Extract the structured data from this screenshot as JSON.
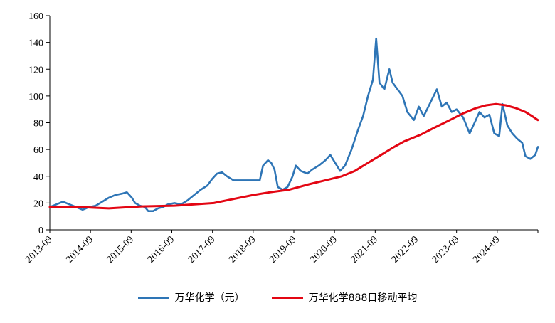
{
  "chart_data": {
    "type": "line",
    "x": [
      "2013-09",
      "2014-09",
      "2015-09",
      "2016-09",
      "2017-09",
      "2018-09",
      "2019-09",
      "2020-09",
      "2021-09",
      "2022-09",
      "2023-09",
      "2024-09"
    ],
    "ylim": [
      0,
      160
    ],
    "yticks": [
      0,
      20,
      40,
      60,
      80,
      100,
      120,
      140,
      160
    ],
    "grid": false,
    "legend_position": "bottom",
    "series": [
      {
        "name": "万华化学（元）",
        "color": "#2e75b6",
        "points": [
          [
            2013.6,
            17
          ],
          [
            2013.8,
            19
          ],
          [
            2014.0,
            21
          ],
          [
            2014.2,
            19
          ],
          [
            2014.4,
            17
          ],
          [
            2014.6,
            15
          ],
          [
            2014.8,
            17
          ],
          [
            2015.0,
            18
          ],
          [
            2015.2,
            21
          ],
          [
            2015.4,
            24
          ],
          [
            2015.6,
            26
          ],
          [
            2015.8,
            27
          ],
          [
            2015.95,
            28
          ],
          [
            2016.1,
            24
          ],
          [
            2016.2,
            20
          ],
          [
            2016.35,
            18
          ],
          [
            2016.5,
            17
          ],
          [
            2016.6,
            14
          ],
          [
            2016.75,
            14
          ],
          [
            2016.9,
            16
          ],
          [
            2017.05,
            17
          ],
          [
            2017.2,
            19
          ],
          [
            2017.4,
            20
          ],
          [
            2017.6,
            19
          ],
          [
            2017.8,
            22
          ],
          [
            2018.0,
            26
          ],
          [
            2018.2,
            30
          ],
          [
            2018.4,
            33
          ],
          [
            2018.55,
            38
          ],
          [
            2018.7,
            42
          ],
          [
            2018.85,
            43
          ],
          [
            2019.0,
            40
          ],
          [
            2019.2,
            37
          ],
          [
            2019.5,
            37
          ],
          [
            2019.8,
            37
          ],
          [
            2020.0,
            37
          ],
          [
            2020.1,
            48
          ],
          [
            2020.25,
            52
          ],
          [
            2020.35,
            50
          ],
          [
            2020.45,
            45
          ],
          [
            2020.55,
            32
          ],
          [
            2020.7,
            30
          ],
          [
            2020.85,
            32
          ],
          [
            2021.0,
            40
          ],
          [
            2021.1,
            48
          ],
          [
            2021.25,
            44
          ],
          [
            2021.45,
            42
          ],
          [
            2021.6,
            45
          ],
          [
            2021.8,
            48
          ],
          [
            2022.0,
            52
          ],
          [
            2022.15,
            56
          ],
          [
            2022.3,
            50
          ],
          [
            2022.45,
            44
          ],
          [
            2022.6,
            48
          ],
          [
            2022.8,
            60
          ],
          [
            2023.0,
            75
          ],
          [
            2023.15,
            85
          ],
          [
            2023.3,
            100
          ],
          [
            2023.45,
            112
          ],
          [
            2023.55,
            143
          ],
          [
            2023.65,
            110
          ],
          [
            2023.8,
            105
          ],
          [
            2023.95,
            120
          ],
          [
            2024.05,
            110
          ],
          [
            2024.2,
            105
          ],
          [
            2024.35,
            100
          ],
          [
            2024.5,
            88
          ],
          [
            2024.7,
            82
          ],
          [
            2024.85,
            92
          ],
          [
            2025.0,
            85
          ],
          [
            2025.2,
            95
          ],
          [
            2025.4,
            105
          ],
          [
            2025.55,
            92
          ],
          [
            2025.7,
            95
          ],
          [
            2025.85,
            88
          ],
          [
            2026.0,
            90
          ],
          [
            2026.2,
            84
          ],
          [
            2026.4,
            72
          ],
          [
            2026.55,
            80
          ],
          [
            2026.7,
            88
          ],
          [
            2026.85,
            84
          ],
          [
            2027.0,
            86
          ],
          [
            2027.15,
            72
          ],
          [
            2027.3,
            70
          ],
          [
            2027.4,
            94
          ],
          [
            2027.55,
            78
          ],
          [
            2027.7,
            72
          ],
          [
            2027.85,
            68
          ],
          [
            2028.0,
            65
          ],
          [
            2028.1,
            55
          ],
          [
            2028.25,
            53
          ],
          [
            2028.4,
            56
          ],
          [
            2028.48,
            62
          ]
        ]
      },
      {
        "name": "万华化学888日移动平均",
        "color": "#e30613",
        "points": [
          [
            2013.6,
            17
          ],
          [
            2014.5,
            17
          ],
          [
            2015.4,
            16
          ],
          [
            2016.4,
            17.5
          ],
          [
            2017.4,
            18
          ],
          [
            2018.0,
            19
          ],
          [
            2018.6,
            20
          ],
          [
            2019.2,
            23
          ],
          [
            2019.8,
            26
          ],
          [
            2020.3,
            28
          ],
          [
            2020.9,
            30
          ],
          [
            2021.5,
            34
          ],
          [
            2022.0,
            37
          ],
          [
            2022.5,
            40
          ],
          [
            2022.9,
            44
          ],
          [
            2023.3,
            50
          ],
          [
            2023.7,
            56
          ],
          [
            2024.1,
            62
          ],
          [
            2024.4,
            66
          ],
          [
            2024.9,
            71
          ],
          [
            2025.3,
            76
          ],
          [
            2025.8,
            82
          ],
          [
            2026.2,
            87
          ],
          [
            2026.6,
            91
          ],
          [
            2026.9,
            93
          ],
          [
            2027.2,
            94
          ],
          [
            2027.5,
            93
          ],
          [
            2027.8,
            91
          ],
          [
            2028.1,
            88
          ],
          [
            2028.3,
            85
          ],
          [
            2028.48,
            82
          ]
        ]
      }
    ]
  }
}
